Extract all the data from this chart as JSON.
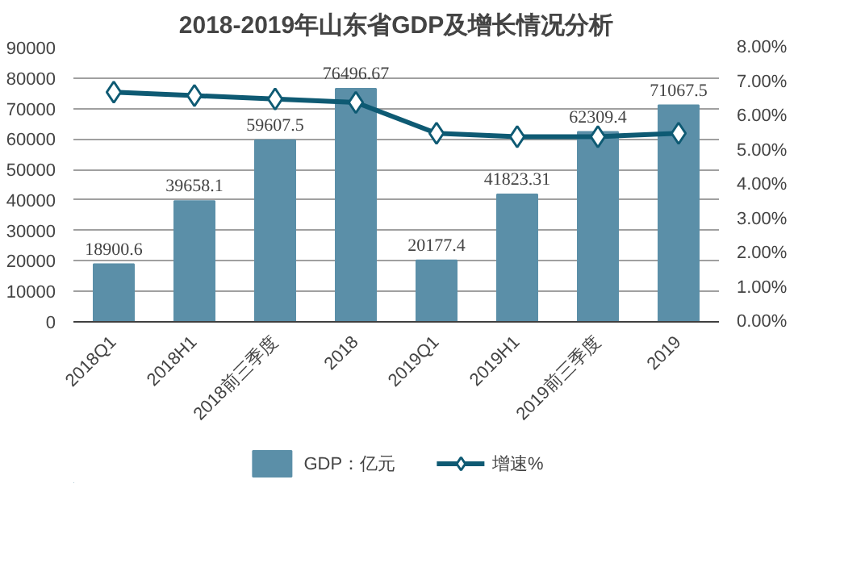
{
  "chart_data": {
    "type": "bar",
    "title": "2018-2019年山东省GDP及增长情况分析",
    "categories": [
      "2018Q1",
      "2018H1",
      "2018前三季度",
      "2018",
      "2019Q1",
      "2019H1",
      "2019前三季度",
      "2019"
    ],
    "series": [
      {
        "name": "GDP：亿元",
        "color": "#5b8fa8",
        "values": [
          18900.6,
          39658.1,
          59607.5,
          76496.67,
          20177.4,
          41823.31,
          62309.4,
          71067.5
        ],
        "value_labels": [
          "18900.6",
          "39658.1",
          "59607.5",
          "76496.67",
          "20177.4",
          "41823.31",
          "62309.4",
          "71067.5"
        ]
      },
      {
        "name": "增速%",
        "type": "line",
        "axis": "y2",
        "color": "#0e5a73",
        "marker": "diamond",
        "values": [
          6.7,
          6.6,
          6.5,
          6.4,
          5.5,
          5.4,
          5.4,
          5.5
        ]
      }
    ],
    "ylim": [
      0,
      90000
    ],
    "yticks": [
      0,
      10000,
      20000,
      30000,
      40000,
      50000,
      60000,
      70000,
      80000,
      90000
    ],
    "y2lim": [
      0,
      8
    ],
    "y2ticks": [
      {
        "value": 0,
        "label": "0.00%"
      },
      {
        "value": 1,
        "label": "1.00%"
      },
      {
        "value": 2,
        "label": "2.00%"
      },
      {
        "value": 3,
        "label": "3.00%"
      },
      {
        "value": 4,
        "label": "4.00%"
      },
      {
        "value": 5,
        "label": "5.00%"
      },
      {
        "value": 6,
        "label": "6.00%"
      },
      {
        "value": 7,
        "label": "7.00%"
      },
      {
        "value": 8,
        "label": "8.00%"
      }
    ],
    "grid": "y",
    "legend": "bottom"
  }
}
